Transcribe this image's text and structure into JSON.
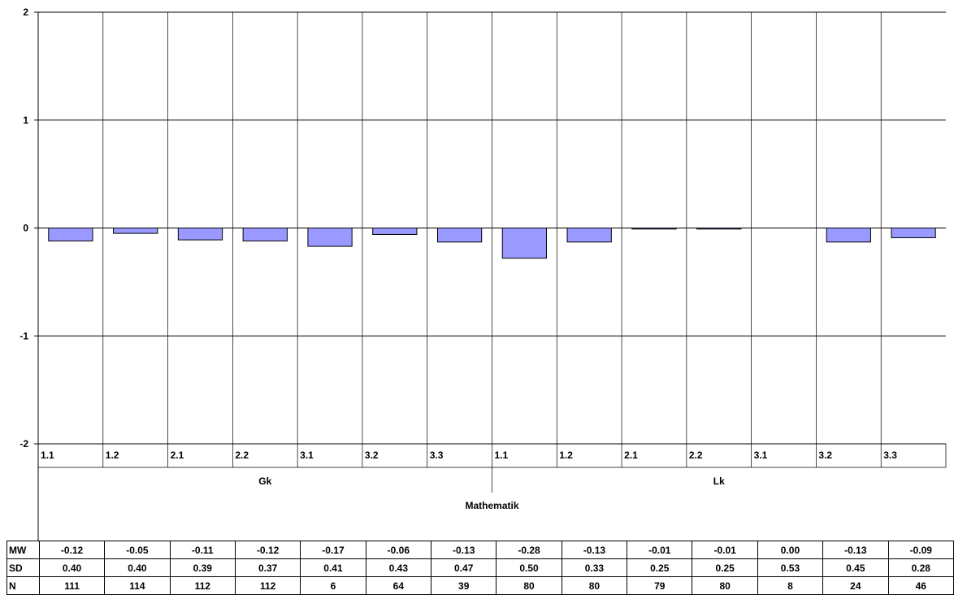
{
  "chart_data": {
    "type": "bar",
    "ylim": [
      -2,
      2
    ],
    "yticks": [
      2,
      1,
      0,
      -1,
      -2
    ],
    "categories": [
      "1.1",
      "1.2",
      "2.1",
      "2.2",
      "3.1",
      "3.2",
      "3.3",
      "1.1",
      "1.2",
      "2.1",
      "2.2",
      "3.1",
      "3.2",
      "3.3"
    ],
    "groups": [
      {
        "label": "Gk",
        "count": 7
      },
      {
        "label": "Lk",
        "count": 7
      }
    ],
    "outer_label": "Mathematik",
    "values": [
      -0.12,
      -0.05,
      -0.11,
      -0.12,
      -0.17,
      -0.06,
      -0.13,
      -0.28,
      -0.13,
      -0.01,
      -0.01,
      0.0,
      -0.13,
      -0.09
    ],
    "bar_color": "#9999ff",
    "grid": true,
    "stats_table": [
      {
        "label": "MW",
        "values": [
          "-0.12",
          "-0.05",
          "-0.11",
          "-0.12",
          "-0.17",
          "-0.06",
          "-0.13",
          "-0.28",
          "-0.13",
          "-0.01",
          "-0.01",
          "0.00",
          "-0.13",
          "-0.09"
        ]
      },
      {
        "label": "SD",
        "values": [
          "0.40",
          "0.40",
          "0.39",
          "0.37",
          "0.41",
          "0.43",
          "0.47",
          "0.50",
          "0.33",
          "0.25",
          "0.25",
          "0.53",
          "0.45",
          "0.28"
        ]
      },
      {
        "label": "N",
        "values": [
          "111",
          "114",
          "112",
          "112",
          "6",
          "64",
          "39",
          "80",
          "80",
          "79",
          "80",
          "8",
          "24",
          "46"
        ]
      }
    ]
  }
}
